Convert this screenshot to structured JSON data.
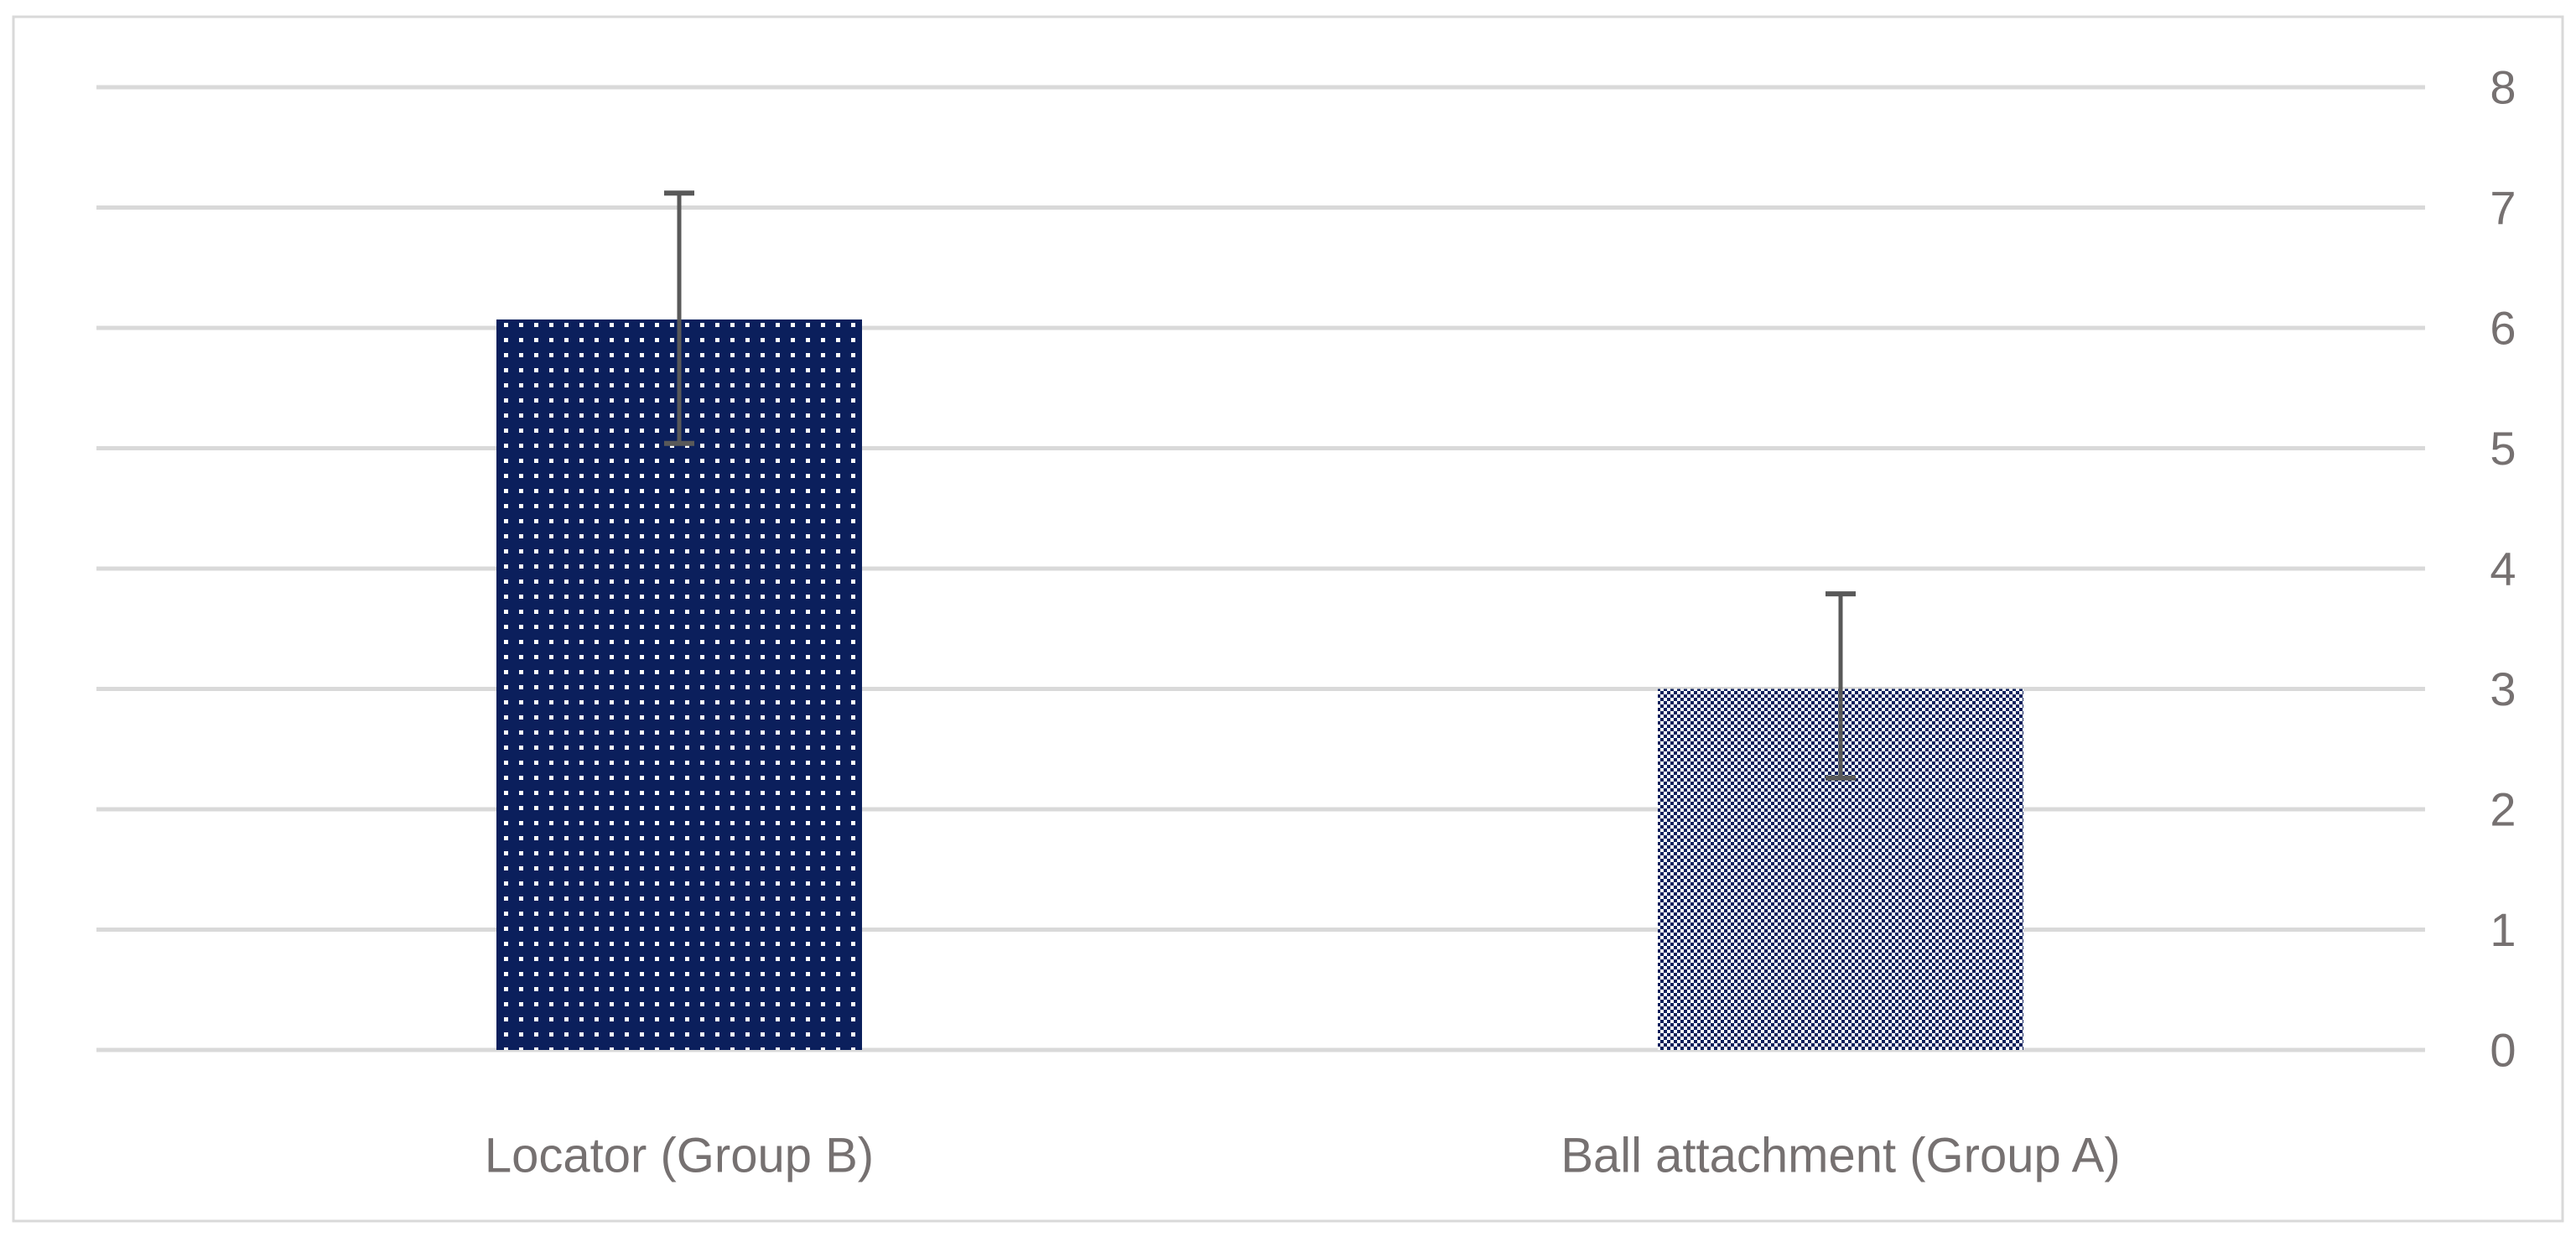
{
  "chart_data": {
    "type": "bar",
    "title": "",
    "xlabel": "",
    "ylabel": "",
    "categories": [
      "Locator (Group B)",
      "Ball attachment (Group A)"
    ],
    "values": [
      6.07,
      3.0
    ],
    "error_upper": [
      7.12,
      3.79
    ],
    "error_lower": [
      5.04,
      2.26
    ],
    "ylim": [
      0,
      8
    ],
    "yticks": [
      "0",
      "1",
      "2",
      "3",
      "4",
      "5",
      "6",
      "7",
      "8"
    ],
    "y_axis_side": "right",
    "grid": true,
    "legend": false,
    "colors": {
      "bar_fill": "#0b1f5c",
      "pattern_light": "#ffffff",
      "gridline": "#d9d9d9",
      "axis_text": "#767171",
      "error_bar": "#595959",
      "frame": "#d9d9d9"
    }
  }
}
